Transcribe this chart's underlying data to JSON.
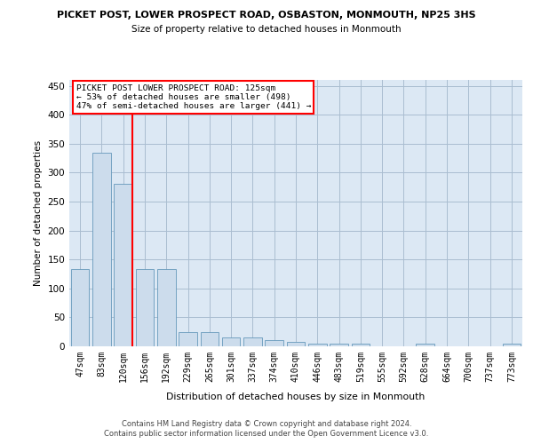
{
  "title": "PICKET POST, LOWER PROSPECT ROAD, OSBASTON, MONMOUTH, NP25 3HS",
  "subtitle": "Size of property relative to detached houses in Monmouth",
  "xlabel": "Distribution of detached houses by size in Monmouth",
  "ylabel": "Number of detached properties",
  "bar_color": "#ccdcec",
  "bar_edge_color": "#6699bb",
  "grid_color": "#aabdd0",
  "background_color": "#dce8f4",
  "annotation_text1": "PICKET POST LOWER PROSPECT ROAD: 125sqm",
  "annotation_text2": "← 53% of detached houses are smaller (498)",
  "annotation_text3": "47% of semi-detached houses are larger (441) →",
  "categories": [
    "47sqm",
    "83sqm",
    "120sqm",
    "156sqm",
    "192sqm",
    "229sqm",
    "265sqm",
    "301sqm",
    "337sqm",
    "374sqm",
    "410sqm",
    "446sqm",
    "483sqm",
    "519sqm",
    "555sqm",
    "592sqm",
    "628sqm",
    "664sqm",
    "700sqm",
    "737sqm",
    "773sqm"
  ],
  "values": [
    133,
    335,
    280,
    133,
    133,
    25,
    25,
    15,
    15,
    10,
    7,
    5,
    5,
    4,
    0,
    0,
    4,
    0,
    0,
    0,
    4
  ],
  "ylim": [
    0,
    460
  ],
  "yticks": [
    0,
    50,
    100,
    150,
    200,
    250,
    300,
    350,
    400,
    450
  ],
  "footer1": "Contains HM Land Registry data © Crown copyright and database right 2024.",
  "footer2": "Contains public sector information licensed under the Open Government Licence v3.0.",
  "red_line_bar_index": 2
}
